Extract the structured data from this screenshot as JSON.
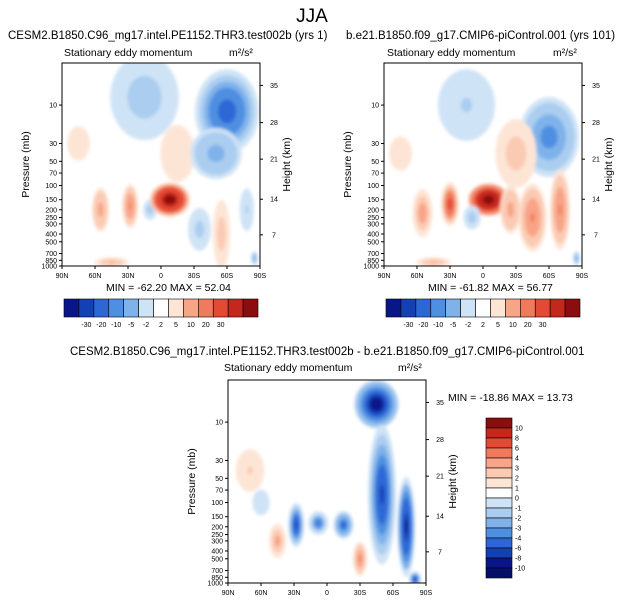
{
  "figure_title": "JJA",
  "chart_data": [
    {
      "type": "heatmap",
      "panel": "control",
      "title": "CESM2.B1850.C96_mg17.intel.PE1152.THR3.test002b (yrs 1)",
      "subtitle": "Stationary eddy momentum",
      "units": "m²/s²",
      "xlabel": "",
      "ylabel": "Pressure (mb)",
      "y2label": "Height (km)",
      "x_ticks": [
        "90N",
        "60N",
        "30N",
        "0",
        "30S",
        "60S",
        "90S"
      ],
      "y_ticks": [
        "10",
        "30",
        "50",
        "70",
        "100",
        "150",
        "200",
        "250",
        "300",
        "400",
        "500",
        "700",
        "850",
        "1000"
      ],
      "y2_ticks": [
        "35",
        "28",
        "21",
        "14",
        "7"
      ],
      "min": -62.2,
      "max": 52.04,
      "stats_text": "MIN = -62.20   MAX = 52.04",
      "colorbar_levels": [
        "-30",
        "-20",
        "-10",
        "-5",
        "-2",
        "2",
        "5",
        "10",
        "20",
        "30"
      ],
      "features": [
        {
          "lat": 5,
          "p": 150,
          "value": 52,
          "note": "positive maximum near tropical tropopause"
        },
        {
          "lat": 60,
          "p": 10,
          "value": -25,
          "note": "negative lobe upper stratosphere SH"
        },
        {
          "lat": 30,
          "p": 200,
          "value": 12,
          "note": "positive lobe subtropical NH"
        }
      ]
    },
    {
      "type": "heatmap",
      "panel": "reference",
      "title": "b.e21.B1850.f09_g17.CMIP6-piControl.001 (yrs 101)",
      "subtitle": "Stationary eddy momentum",
      "units": "m²/s²",
      "ylabel": "Pressure (mb)",
      "y2label": "Height (km)",
      "x_ticks": [
        "90N",
        "60N",
        "30N",
        "0",
        "30S",
        "60S",
        "90S"
      ],
      "y_ticks": [
        "10",
        "30",
        "50",
        "70",
        "100",
        "150",
        "200",
        "250",
        "300",
        "400",
        "500",
        "700",
        "850",
        "1000"
      ],
      "y2_ticks": [
        "35",
        "28",
        "21",
        "14",
        "7"
      ],
      "min": -61.82,
      "max": 56.77,
      "stats_text": "MIN = -61.82   MAX = 56.77",
      "colorbar_levels": [
        "-30",
        "-20",
        "-10",
        "-5",
        "-2",
        "2",
        "5",
        "10",
        "20",
        "30"
      ]
    },
    {
      "type": "heatmap",
      "panel": "difference",
      "title": "CESM2.B1850.C96_mg17.intel.PE1152.THR3.test002b - b.e21.B1850.f09_g17.CMIP6-piControl.001",
      "subtitle": "Stationary eddy momentum",
      "units": "m²/s²",
      "ylabel": "Pressure (mb)",
      "y2label": "Height (km)",
      "x_ticks": [
        "90N",
        "60N",
        "30N",
        "0",
        "30S",
        "60S",
        "90S"
      ],
      "y_ticks": [
        "10",
        "30",
        "50",
        "70",
        "100",
        "150",
        "200",
        "250",
        "300",
        "400",
        "500",
        "700",
        "850",
        "1000"
      ],
      "y2_ticks": [
        "35",
        "28",
        "21",
        "14",
        "7"
      ],
      "min": -18.86,
      "max": 13.73,
      "stats_text": "MIN = -18.86   MAX =  13.73",
      "colorbar_levels": [
        "10",
        "8",
        "6",
        "4",
        "3",
        "2",
        "1",
        "0",
        "-1",
        "-2",
        "-3",
        "-4",
        "-6",
        "-8",
        "-10"
      ]
    }
  ]
}
